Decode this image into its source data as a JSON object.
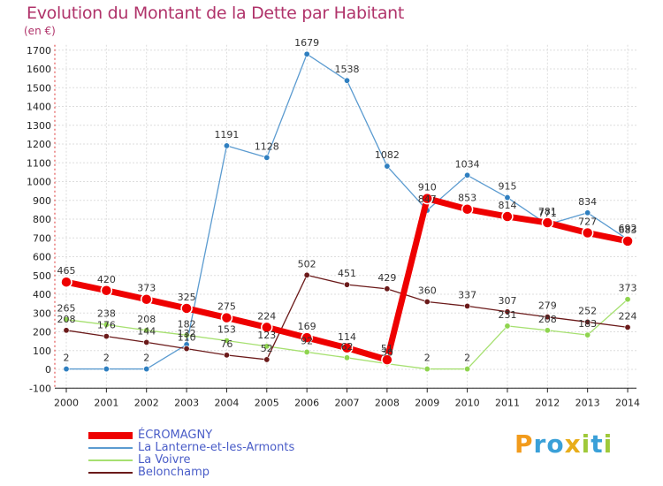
{
  "title": "Evolution du Montant de la Dette par Habitant",
  "subtitle": "(en €)",
  "logo": {
    "letters": [
      "P",
      "r",
      "o",
      "x",
      "i",
      "t",
      "i"
    ],
    "colors": [
      "#f29b1c",
      "#3aa0d8",
      "#3aa0d8",
      "#e8ad1a",
      "#9fc93a",
      "#3aa0d8",
      "#9fc93a"
    ]
  },
  "chart_data": {
    "type": "line",
    "x": [
      "2000",
      "2001",
      "2002",
      "2003",
      "2004",
      "2005",
      "2006",
      "2007",
      "2008",
      "2009",
      "2010",
      "2011",
      "2012",
      "2013",
      "2014"
    ],
    "ylim": [
      -100,
      1700
    ],
    "yticks": [
      "-100",
      "0",
      "100",
      "200",
      "300",
      "400",
      "500",
      "600",
      "700",
      "800",
      "900",
      "1000",
      "1100",
      "1200",
      "1300",
      "1400",
      "1500",
      "1600",
      "1700"
    ],
    "grid": true,
    "legend_position": "bottom-left",
    "series": [
      {
        "name": "ÉCROMAGNY",
        "color": "#ee0000",
        "values": [
          465,
          420,
          373,
          325,
          275,
          224,
          169,
          114,
          51,
          910,
          853,
          814,
          781,
          727,
          683
        ],
        "labels": [
          "465",
          "420",
          "373",
          "325",
          "275",
          "224",
          "169",
          "114",
          "51",
          "910",
          "853",
          "814",
          "781",
          "727",
          "683"
        ]
      },
      {
        "name": "La Lanterne-et-les-Armonts",
        "color": "#5b9bd0",
        "values": [
          2,
          2,
          2,
          132,
          1191,
          1128,
          1679,
          1538,
          1082,
          847,
          1034,
          915,
          771,
          834,
          692
        ],
        "labels": [
          "2",
          "2",
          "2",
          "132",
          "1191",
          "1128",
          "1679",
          "1538",
          "1082",
          "847",
          "1034",
          "915",
          "771",
          "834",
          "692"
        ]
      },
      {
        "name": "La Voivre",
        "color": "#a6e070",
        "values": [
          265,
          238,
          208,
          182,
          153,
          123,
          92,
          62,
          30,
          2,
          2,
          231,
          208,
          183,
          373
        ],
        "labels": [
          "265",
          "238",
          "208",
          "182",
          "153",
          "123",
          "92",
          "62",
          "30",
          "2",
          "2",
          "231",
          "208",
          "183",
          "373"
        ]
      },
      {
        "name": "Belonchamp",
        "color": "#6b1a1a",
        "values": [
          208,
          176,
          144,
          110,
          76,
          52,
          502,
          451,
          429,
          360,
          337,
          307,
          279,
          252,
          224
        ],
        "labels": [
          "208",
          "176",
          "144",
          "110",
          "76",
          "52",
          "502",
          "451",
          "429",
          "360",
          "337",
          "307",
          "279",
          "252",
          "224"
        ]
      }
    ]
  }
}
